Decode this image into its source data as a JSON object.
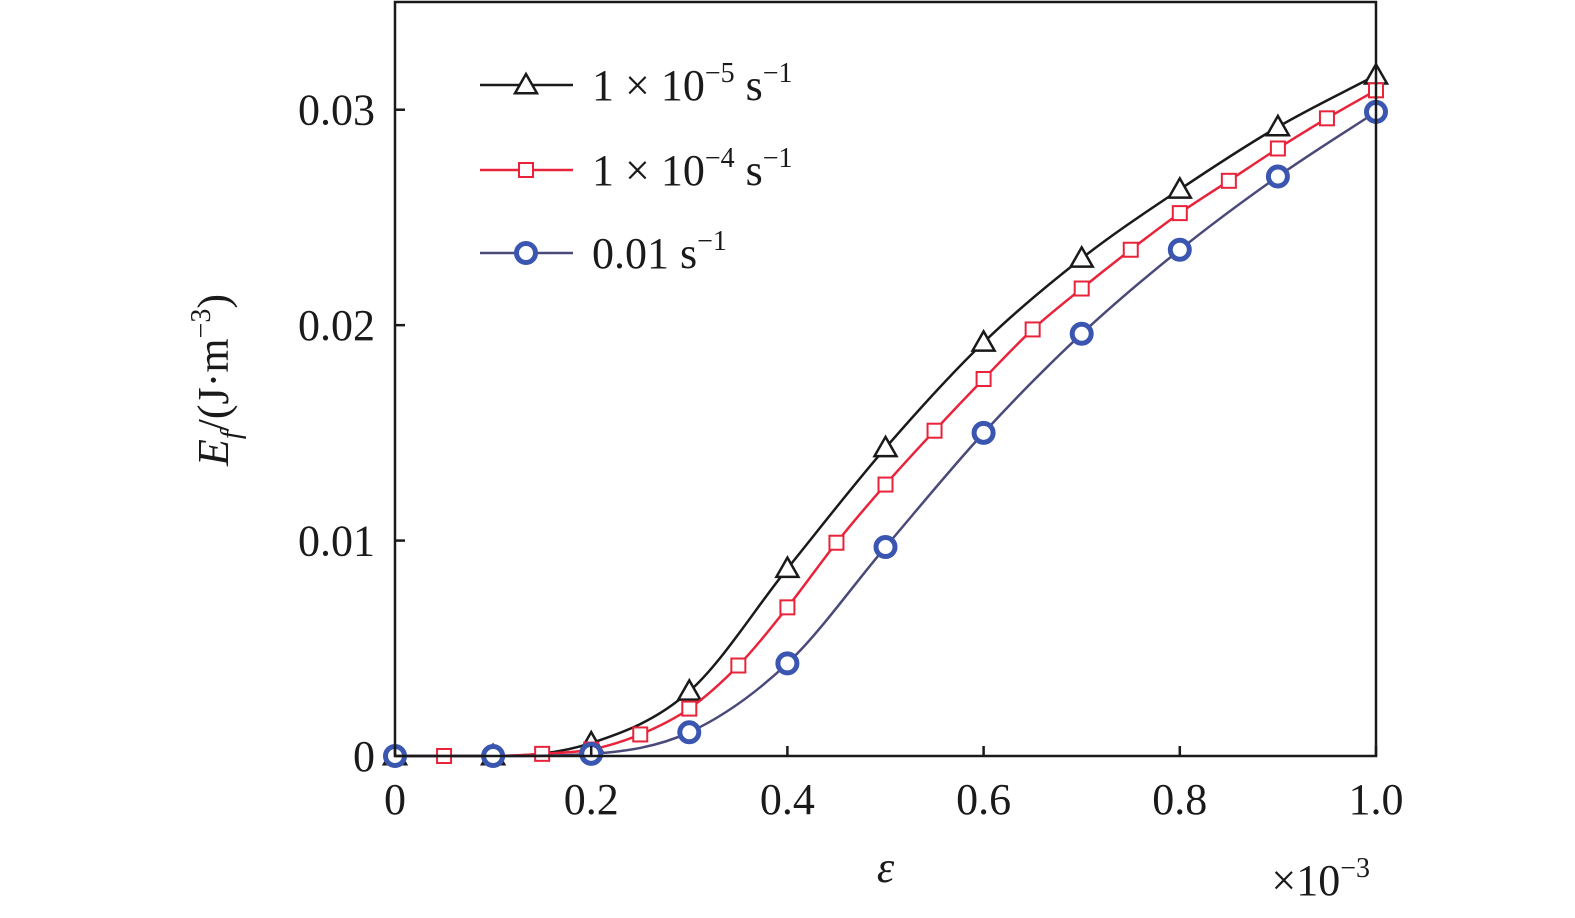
{
  "chart_data": {
    "type": "line",
    "xlabel": "ε",
    "x_multiplier": {
      "base": "×10",
      "exp": "−3"
    },
    "ylabel": {
      "main": "E",
      "sub": "f",
      "unit_start": "/(J·m",
      "unit_exp": "−3",
      "unit_end": ")"
    },
    "xlim": [
      0,
      1.0
    ],
    "ylim": [
      0,
      0.035
    ],
    "x_ticks": [
      {
        "value": 0,
        "label": "0"
      },
      {
        "value": 0.2,
        "label": "0.2"
      },
      {
        "value": 0.4,
        "label": "0.4"
      },
      {
        "value": 0.6,
        "label": "0.6"
      },
      {
        "value": 0.8,
        "label": "0.8"
      },
      {
        "value": 1.0,
        "label": "1.0"
      }
    ],
    "y_ticks": [
      {
        "value": 0,
        "label": "0"
      },
      {
        "value": 0.01,
        "label": "0.01"
      },
      {
        "value": 0.02,
        "label": "0.02"
      },
      {
        "value": 0.03,
        "label": "0.03"
      }
    ],
    "grid": false,
    "legend_position": "top-left",
    "series": [
      {
        "legend": {
          "base": "1 × 10",
          "exp1": "−5",
          "unit": " s",
          "exp2": "−1"
        },
        "color": "#1a1a1a",
        "marker": "triangle",
        "x": [
          0,
          0.1,
          0.2,
          0.3,
          0.4,
          0.5,
          0.6,
          0.7,
          0.8,
          0.9,
          1.0
        ],
        "y": [
          0,
          0,
          0.0006,
          0.003,
          0.0087,
          0.0143,
          0.0192,
          0.0231,
          0.0263,
          0.0292,
          0.0316
        ]
      },
      {
        "legend": {
          "base": "1 × 10",
          "exp1": "−4",
          "unit": " s",
          "exp2": "−1"
        },
        "color": "#e8233a",
        "marker": "square",
        "x": [
          0,
          0.05,
          0.1,
          0.15,
          0.2,
          0.25,
          0.3,
          0.35,
          0.4,
          0.45,
          0.5,
          0.55,
          0.6,
          0.65,
          0.7,
          0.75,
          0.8,
          0.85,
          0.9,
          0.95,
          1.0
        ],
        "y": [
          0,
          0,
          0,
          0.0001,
          0.0003,
          0.001,
          0.0022,
          0.0042,
          0.0069,
          0.0099,
          0.0126,
          0.0151,
          0.0175,
          0.0198,
          0.0217,
          0.0235,
          0.0252,
          0.0267,
          0.0282,
          0.0296,
          0.0309
        ]
      },
      {
        "legend": {
          "base": "0.01",
          "exp1": "",
          "unit": " s",
          "exp2": "−1"
        },
        "color": "#3a56b0",
        "line_color": "#4a4a7a",
        "marker": "circle",
        "x": [
          0,
          0.1,
          0.2,
          0.3,
          0.4,
          0.5,
          0.6,
          0.7,
          0.8,
          0.9,
          1.0
        ],
        "y": [
          0,
          0,
          0.0001,
          0.0011,
          0.0043,
          0.0097,
          0.015,
          0.0196,
          0.0235,
          0.0269,
          0.0299
        ]
      }
    ]
  }
}
